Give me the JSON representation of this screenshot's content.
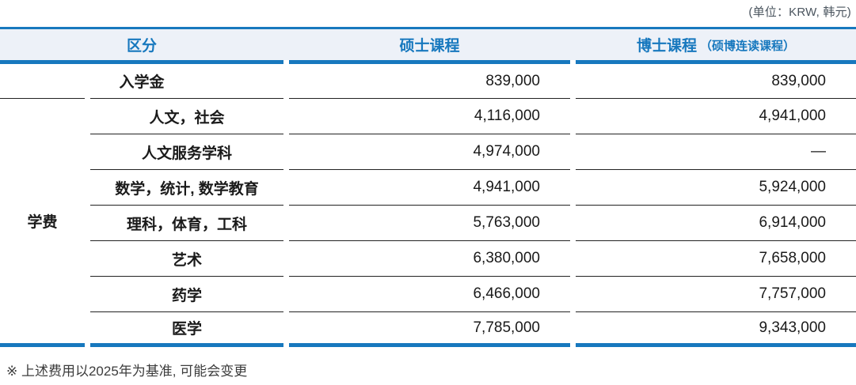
{
  "unit_note": "(单位：KRW, 韩元)",
  "table": {
    "headers": {
      "category": "区分",
      "master": "硕士课程",
      "doctor": "博士课程",
      "doctor_sub": "（硕博连读课程）"
    },
    "group_label": "学费",
    "rows": [
      {
        "label": "入学金",
        "master": "839,000",
        "doctor": "839,000"
      },
      {
        "label": "人文，社会",
        "master": "4,116,000",
        "doctor": "4,941,000"
      },
      {
        "label": "人文服务学科",
        "master": "4,974,000",
        "doctor": "—"
      },
      {
        "label": "数学，统计, 数学教育",
        "master": "4,941,000",
        "doctor": "5,924,000"
      },
      {
        "label": "理科，体育，工科",
        "master": "5,763,000",
        "doctor": "6,914,000"
      },
      {
        "label": "艺术",
        "master": "6,380,000",
        "doctor": "7,658,000"
      },
      {
        "label": "药学",
        "master": "6,466,000",
        "doctor": "7,757,000"
      },
      {
        "label": "医学",
        "master": "7,785,000",
        "doctor": "9,343,000"
      }
    ]
  },
  "footnote": "※ 上述费用以2025年为基准, 可能会变更",
  "colors": {
    "accent_blue": "#1778be",
    "header_bg": "#edf1f8",
    "divider": "#222222"
  }
}
